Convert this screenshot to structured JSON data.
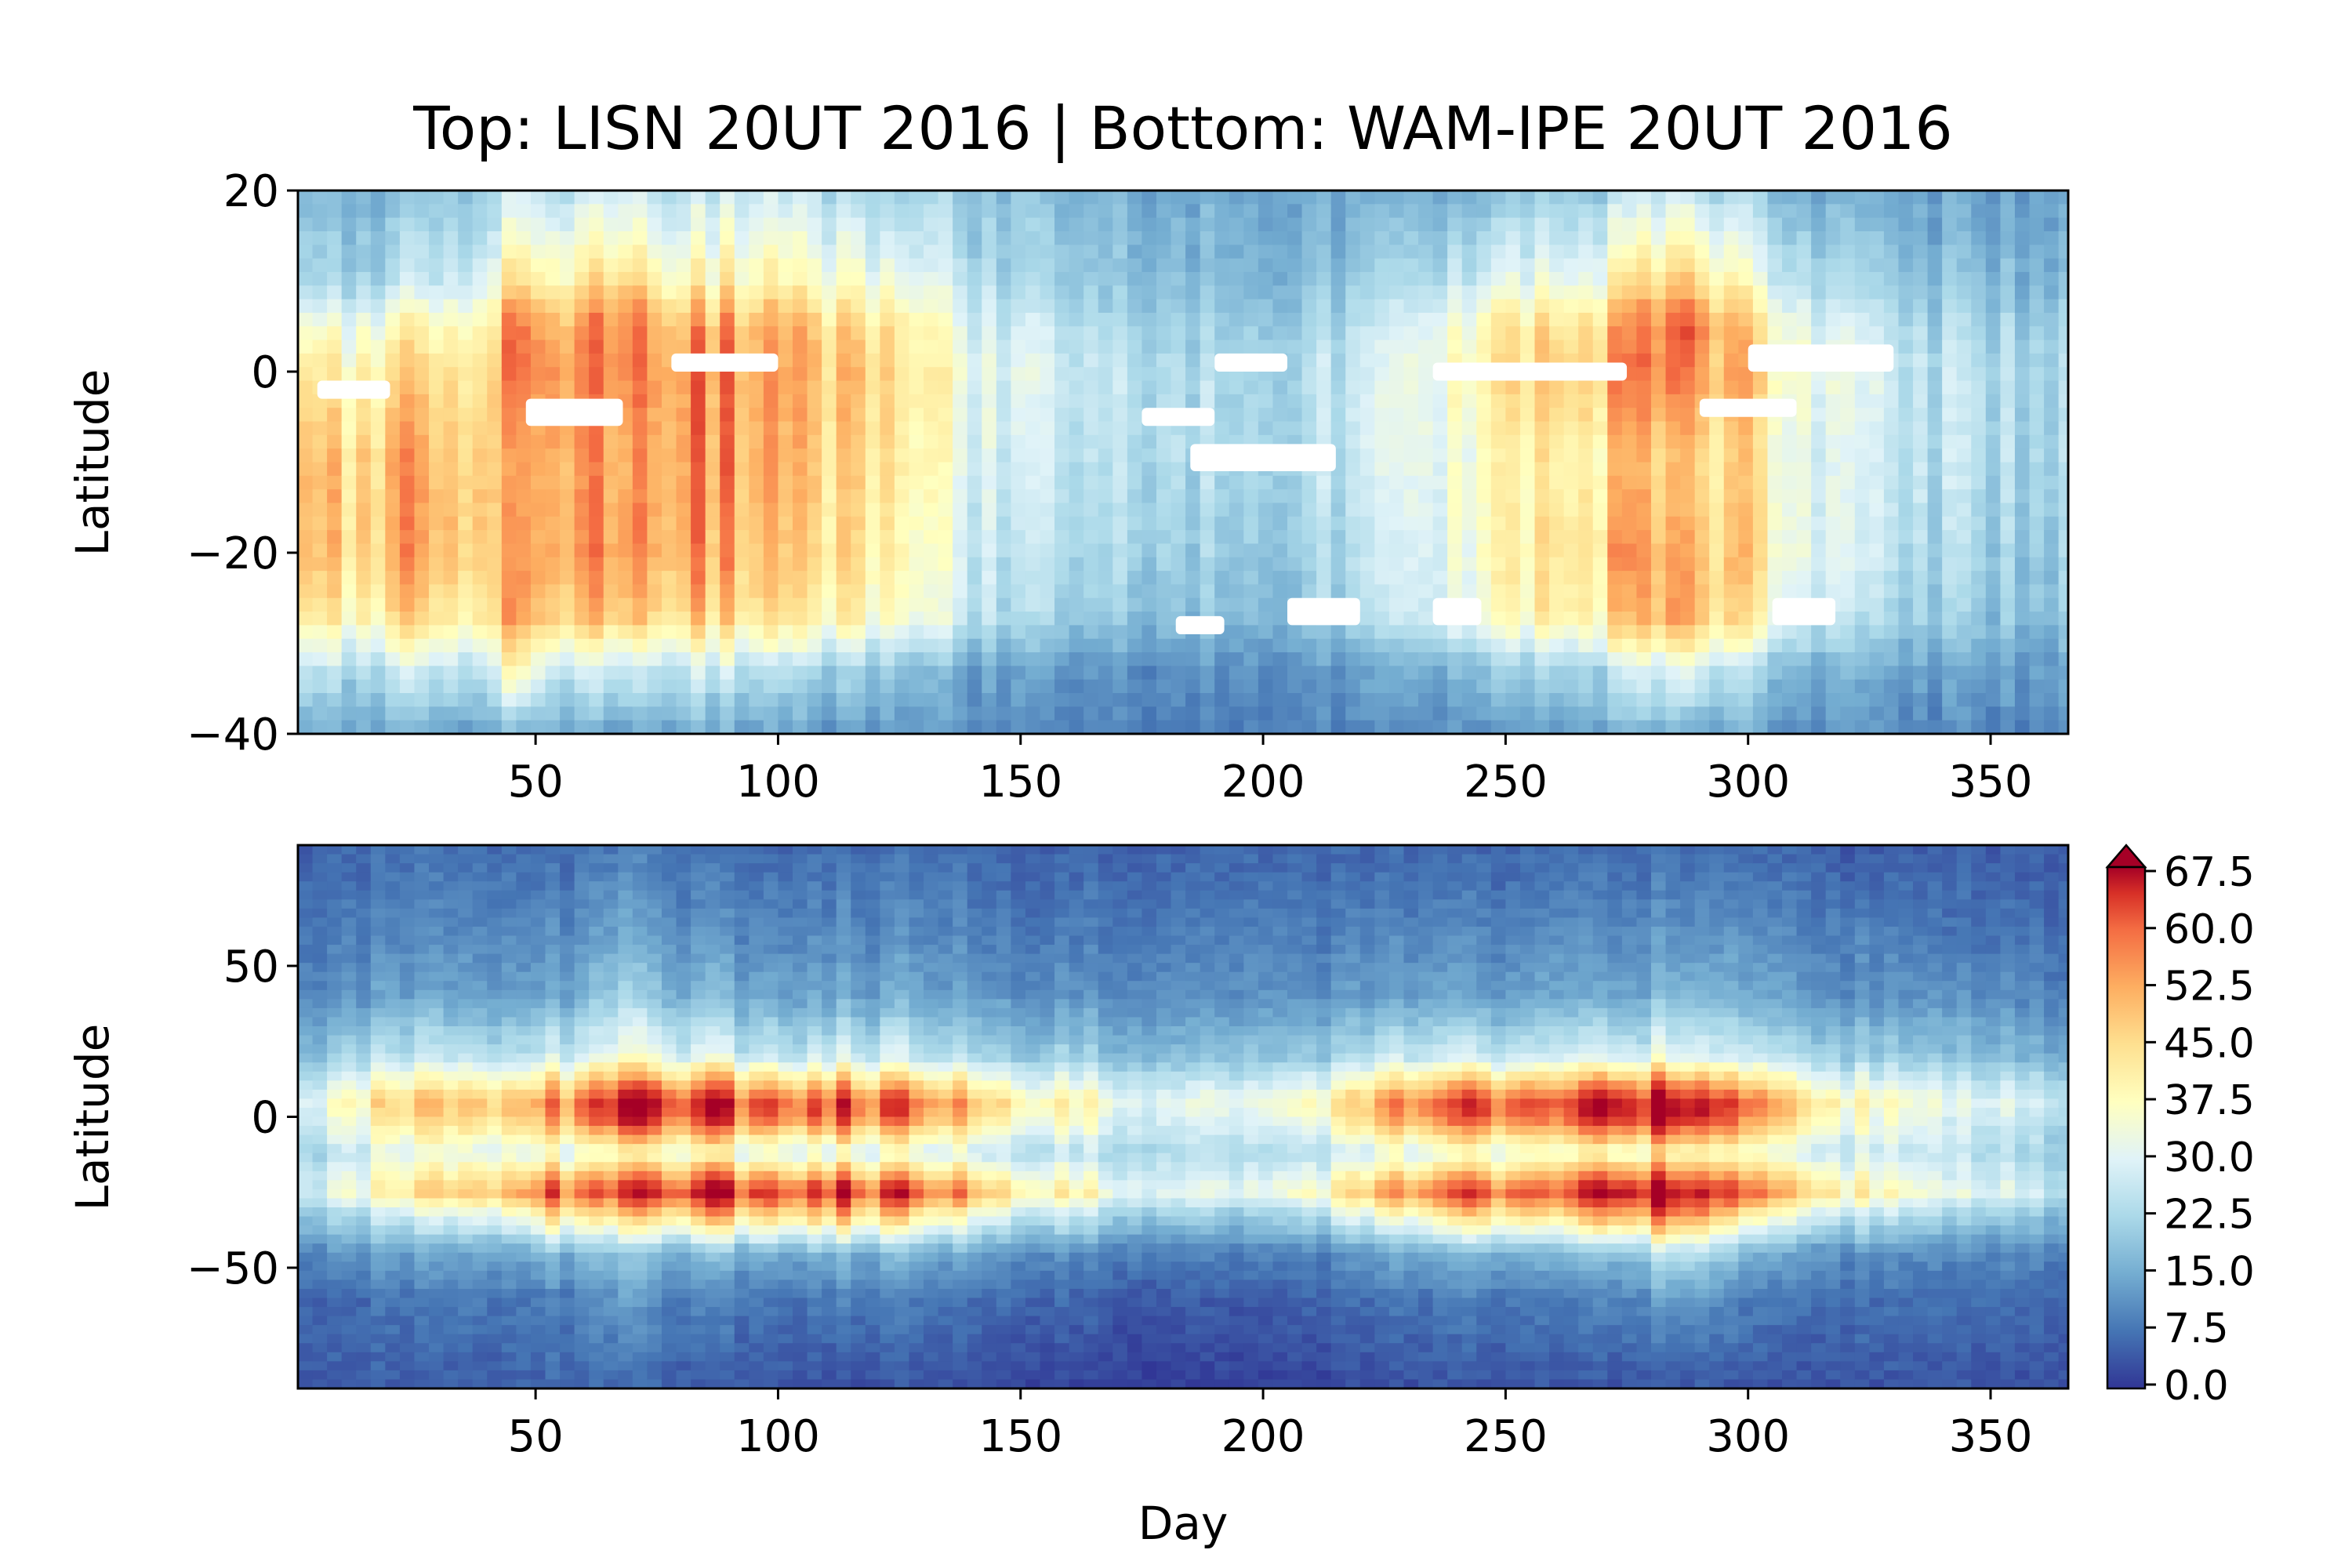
{
  "figure": {
    "title": "Top: LISN 20UT 2016 | Bottom: WAM-IPE 20UT 2016"
  },
  "chart_data": [
    {
      "type": "heatmap",
      "title": "Top: LISN 20UT 2016",
      "xlabel": "",
      "ylabel": "Latitude",
      "xlim": [
        1,
        366
      ],
      "ylim": [
        -40,
        20
      ],
      "x_ticks": [
        50,
        100,
        150,
        200,
        250,
        300,
        350
      ],
      "y_ticks": [
        -40,
        -20,
        0,
        20
      ],
      "colorscale": "RdYlBu_r",
      "missing_color": "#ffffff",
      "value_grid": {
        "x": [
          1,
          20,
          40,
          45,
          55,
          68,
          80,
          100,
          120,
          135,
          150,
          175,
          200,
          225,
          245,
          260,
          275,
          287,
          300,
          320,
          340,
          366
        ],
        "y": [
          20,
          10,
          5,
          0,
          -10,
          -20,
          -27,
          -33,
          -40
        ],
        "values": [
          [
            14,
            15,
            20,
            28,
            24,
            28,
            22,
            24,
            20,
            18,
            16,
            14,
            13,
            13,
            16,
            18,
            20,
            26,
            18,
            14,
            12,
            12
          ],
          [
            18,
            20,
            30,
            45,
            38,
            48,
            34,
            36,
            30,
            24,
            20,
            16,
            15,
            18,
            28,
            30,
            34,
            46,
            30,
            20,
            16,
            15
          ],
          [
            28,
            32,
            40,
            60,
            50,
            60,
            46,
            46,
            40,
            30,
            24,
            20,
            18,
            22,
            38,
            40,
            44,
            60,
            40,
            26,
            20,
            18
          ],
          [
            34,
            38,
            46,
            60,
            54,
            58,
            50,
            48,
            42,
            32,
            26,
            22,
            20,
            24,
            40,
            44,
            46,
            56,
            42,
            28,
            22,
            20
          ],
          [
            40,
            44,
            50,
            52,
            52,
            54,
            50,
            46,
            40,
            30,
            24,
            22,
            20,
            24,
            36,
            38,
            40,
            46,
            38,
            26,
            22,
            20
          ],
          [
            40,
            44,
            50,
            54,
            52,
            56,
            48,
            44,
            38,
            28,
            22,
            20,
            18,
            22,
            36,
            40,
            44,
            50,
            40,
            26,
            20,
            18
          ],
          [
            34,
            38,
            44,
            56,
            46,
            50,
            42,
            40,
            34,
            26,
            20,
            17,
            16,
            20,
            34,
            38,
            40,
            52,
            36,
            22,
            18,
            16
          ],
          [
            20,
            22,
            26,
            40,
            26,
            28,
            24,
            22,
            18,
            14,
            12,
            10,
            10,
            12,
            18,
            20,
            22,
            30,
            20,
            14,
            12,
            12
          ],
          [
            12,
            13,
            14,
            16,
            14,
            14,
            13,
            12,
            11,
            10,
            9,
            8,
            8,
            9,
            11,
            12,
            13,
            14,
            12,
            10,
            9,
            9
          ]
        ]
      },
      "missing_regions": [
        {
          "x": [
            5,
            20
          ],
          "y": [
            -3,
            -1
          ]
        },
        {
          "x": [
            48,
            68
          ],
          "y": [
            -6,
            -3
          ]
        },
        {
          "x": [
            78,
            100
          ],
          "y": [
            0,
            2
          ]
        },
        {
          "x": [
            175,
            190
          ],
          "y": [
            -6,
            -4
          ]
        },
        {
          "x": [
            185,
            215
          ],
          "y": [
            -11,
            -8
          ]
        },
        {
          "x": [
            190,
            205
          ],
          "y": [
            0,
            2
          ]
        },
        {
          "x": [
            182,
            192
          ],
          "y": [
            -29,
            -27
          ]
        },
        {
          "x": [
            205,
            220
          ],
          "y": [
            -28,
            -25
          ]
        },
        {
          "x": [
            235,
            245
          ],
          "y": [
            -28,
            -25
          ]
        },
        {
          "x": [
            235,
            275
          ],
          "y": [
            -1,
            1
          ]
        },
        {
          "x": [
            290,
            310
          ],
          "y": [
            -5,
            -3
          ]
        },
        {
          "x": [
            300,
            330
          ],
          "y": [
            0,
            3
          ]
        },
        {
          "x": [
            305,
            318
          ],
          "y": [
            -28,
            -25
          ]
        }
      ]
    },
    {
      "type": "heatmap",
      "title": "Bottom: WAM-IPE 20UT 2016",
      "xlabel": "Day",
      "ylabel": "Latitude",
      "xlim": [
        1,
        366
      ],
      "ylim": [
        -90,
        90
      ],
      "x_ticks": [
        50,
        100,
        150,
        200,
        250,
        300,
        350
      ],
      "y_ticks": [
        -50,
        0,
        50
      ],
      "colorscale": "RdYlBu_r",
      "colorbar": {
        "ticks": [
          "0.0",
          "7.5",
          "15.0",
          "22.5",
          "30.0",
          "37.5",
          "45.0",
          "52.5",
          "60.0",
          "67.5"
        ],
        "min": 0,
        "max": 67.5,
        "extend": "max"
      },
      "value_grid": {
        "x": [
          1,
          15,
          30,
          45,
          55,
          67,
          80,
          100,
          120,
          135,
          150,
          175,
          200,
          222,
          235,
          248,
          260,
          272,
          287,
          300,
          320,
          340,
          366
        ],
        "y": [
          90,
          60,
          40,
          20,
          5,
          0,
          -12,
          -25,
          -32,
          -45,
          -60,
          -90
        ],
        "values": [
          [
            5,
            5,
            6,
            6,
            6,
            8,
            6,
            6,
            6,
            6,
            5,
            5,
            5,
            5,
            5,
            5,
            5,
            5,
            6,
            5,
            4,
            4,
            4
          ],
          [
            8,
            8,
            9,
            10,
            10,
            14,
            10,
            10,
            10,
            9,
            8,
            8,
            8,
            8,
            9,
            9,
            9,
            9,
            11,
            9,
            8,
            7,
            7
          ],
          [
            10,
            11,
            12,
            13,
            13,
            20,
            14,
            14,
            13,
            12,
            11,
            10,
            10,
            11,
            12,
            12,
            12,
            12,
            16,
            12,
            10,
            10,
            9
          ],
          [
            18,
            20,
            22,
            24,
            25,
            32,
            26,
            26,
            25,
            22,
            20,
            17,
            16,
            20,
            24,
            24,
            22,
            24,
            28,
            22,
            18,
            16,
            15
          ],
          [
            30,
            36,
            42,
            48,
            52,
            68,
            58,
            62,
            58,
            48,
            40,
            30,
            28,
            42,
            52,
            60,
            50,
            62,
            68,
            48,
            34,
            28,
            26
          ],
          [
            28,
            34,
            40,
            46,
            50,
            66,
            56,
            60,
            56,
            46,
            38,
            28,
            26,
            40,
            50,
            58,
            48,
            60,
            68,
            46,
            32,
            26,
            24
          ],
          [
            22,
            24,
            28,
            30,
            30,
            34,
            30,
            30,
            28,
            26,
            24,
            22,
            20,
            24,
            28,
            30,
            28,
            30,
            36,
            28,
            24,
            22,
            20
          ],
          [
            28,
            32,
            40,
            52,
            58,
            62,
            60,
            66,
            62,
            52,
            42,
            30,
            28,
            42,
            52,
            60,
            50,
            64,
            68,
            50,
            36,
            28,
            26
          ],
          [
            20,
            22,
            26,
            34,
            42,
            44,
            42,
            48,
            44,
            36,
            28,
            20,
            18,
            28,
            36,
            44,
            36,
            46,
            56,
            34,
            24,
            20,
            18
          ],
          [
            10,
            11,
            12,
            14,
            16,
            18,
            14,
            16,
            15,
            13,
            11,
            9,
            8,
            11,
            13,
            16,
            13,
            15,
            24,
            13,
            10,
            9,
            9
          ],
          [
            6,
            6,
            7,
            8,
            8,
            12,
            8,
            8,
            8,
            7,
            6,
            4,
            4,
            6,
            7,
            8,
            7,
            8,
            12,
            7,
            6,
            6,
            6
          ],
          [
            4,
            4,
            4,
            5,
            5,
            6,
            4,
            4,
            3,
            3,
            2,
            1,
            1,
            2,
            3,
            3,
            3,
            3,
            4,
            3,
            3,
            3,
            3
          ]
        ]
      }
    }
  ]
}
